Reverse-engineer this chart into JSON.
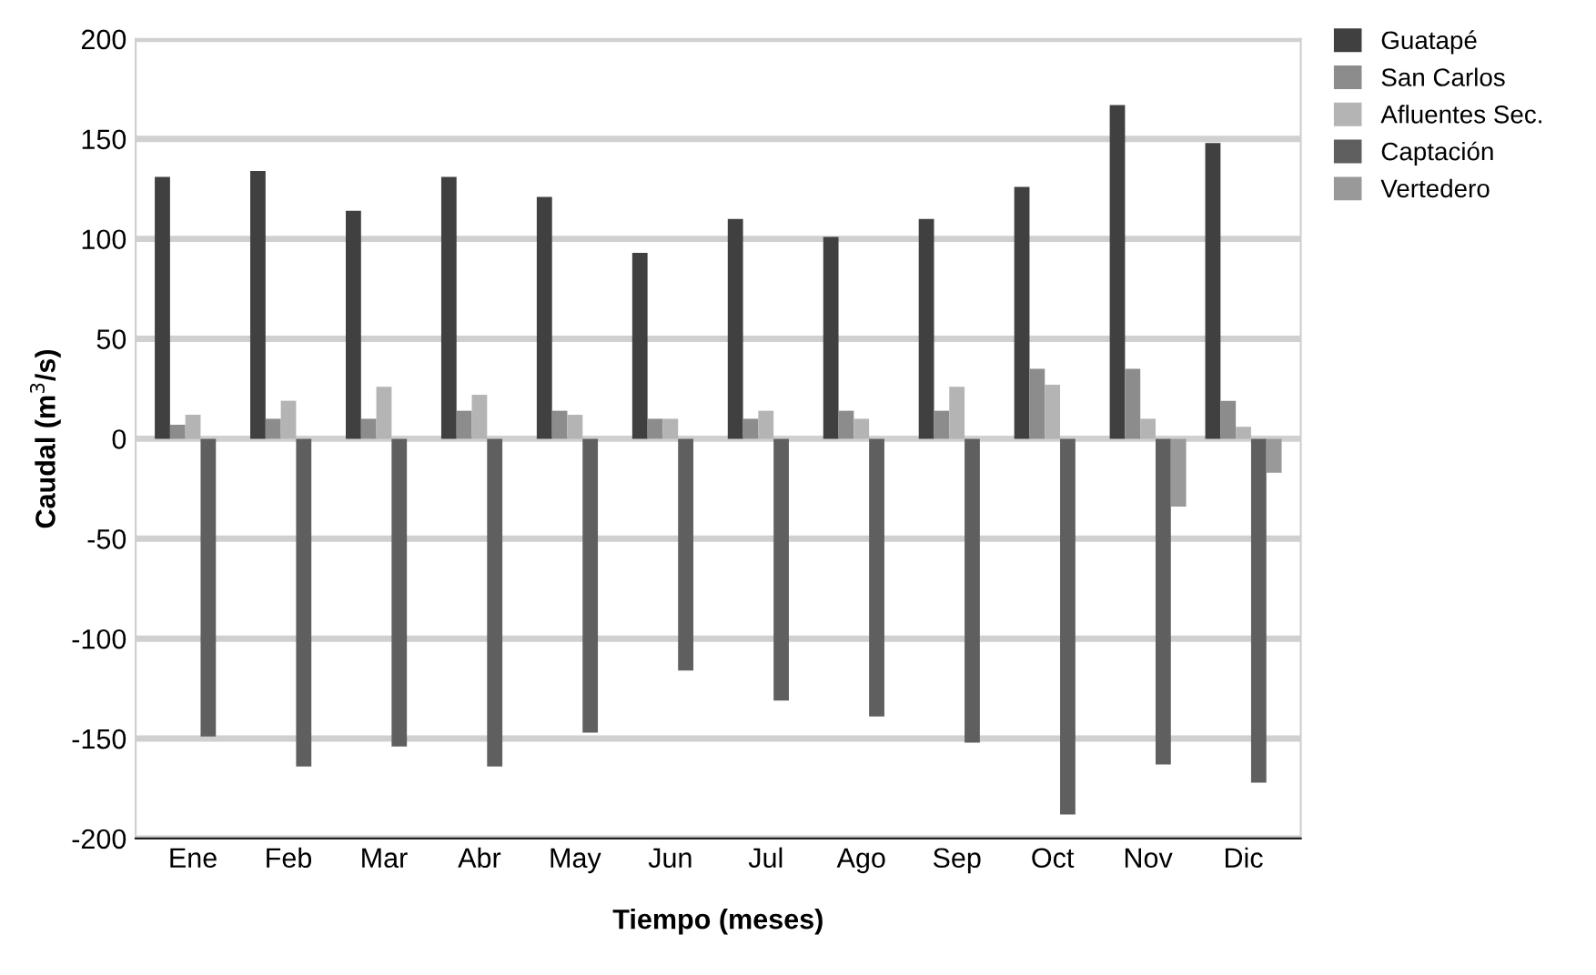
{
  "chart_data": {
    "type": "bar",
    "xlabel": "Tiempo (meses)",
    "ylabel": "Caudal (m$^{3}$/s)",
    "categories": [
      "Ene",
      "Feb",
      "Mar",
      "Abr",
      "May",
      "Jun",
      "Jul",
      "Ago",
      "Sep",
      "Oct",
      "Nov",
      "Dic"
    ],
    "series": [
      {
        "name": "Guatapé",
        "color": "#404040",
        "values": [
          131,
          134,
          114,
          131,
          121,
          93,
          110,
          101,
          110,
          126,
          167,
          148
        ]
      },
      {
        "name": "San Carlos",
        "color": "#8c8c8c",
        "values": [
          7,
          10,
          10,
          14,
          14,
          10,
          10,
          14,
          14,
          35,
          35,
          19
        ]
      },
      {
        "name": "Afluentes Sec.",
        "color": "#b4b4b4",
        "values": [
          12,
          19,
          26,
          22,
          12,
          10,
          14,
          10,
          26,
          27,
          10,
          6
        ]
      },
      {
        "name": "Captación",
        "color": "#5f5f5f",
        "values": [
          -149,
          -164,
          -154,
          -164,
          -147,
          -116,
          -131,
          -139,
          -152,
          -188,
          -163,
          -172
        ]
      },
      {
        "name": "Vertedero",
        "color": "#999999",
        "values": [
          0,
          0,
          0,
          0,
          0,
          0,
          0,
          0,
          0,
          0,
          -34,
          -17
        ]
      }
    ],
    "ylim": [
      -200,
      200
    ],
    "yticks": [
      -200,
      -150,
      -100,
      -50,
      0,
      50,
      100,
      150,
      200
    ],
    "grid": "y",
    "legend": "top right"
  }
}
